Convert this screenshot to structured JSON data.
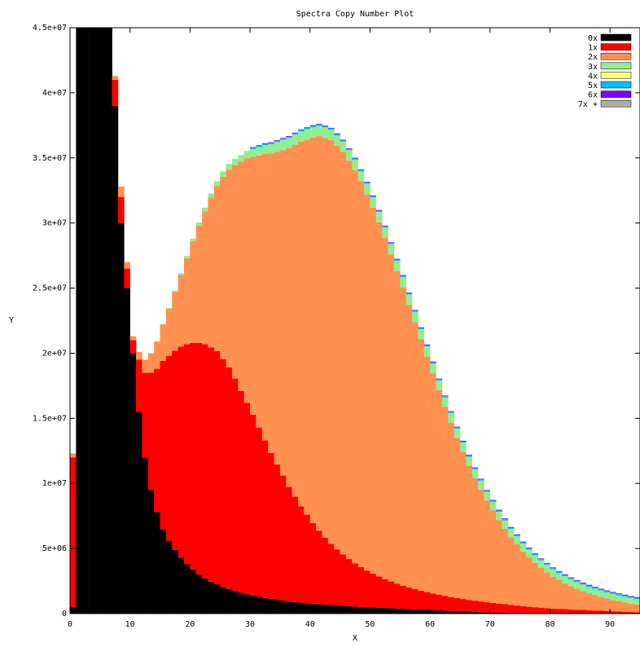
{
  "chart_data": {
    "type": "area",
    "title": "Spectra Copy Number Plot",
    "xlabel": "X",
    "ylabel": "Y",
    "xlim": [
      0,
      95
    ],
    "ylim": [
      0,
      45000000
    ],
    "x_ticks": [
      0,
      10,
      20,
      30,
      40,
      50,
      60,
      70,
      80,
      90
    ],
    "x_tick_labels": [
      "0",
      "10",
      "20",
      "30",
      "40",
      "50",
      "60",
      "70",
      "80",
      "90"
    ],
    "y_ticks": [
      0,
      5000000,
      10000000,
      15000000,
      20000000,
      25000000,
      30000000,
      35000000,
      40000000,
      45000000
    ],
    "y_tick_labels": [
      "0",
      "5e+06",
      "1e+07",
      "1.5e+07",
      "2e+07",
      "2.5e+07",
      "3e+07",
      "3.5e+07",
      "4e+07",
      "4.5e+07"
    ],
    "grid": false,
    "legend_position": "top-right",
    "x": [
      0,
      1,
      2,
      3,
      4,
      5,
      6,
      7,
      8,
      9,
      10,
      11,
      12,
      13,
      14,
      15,
      16,
      17,
      18,
      19,
      20,
      21,
      22,
      23,
      24,
      25,
      26,
      27,
      28,
      29,
      30,
      31,
      32,
      33,
      34,
      35,
      36,
      37,
      38,
      39,
      40,
      41,
      42,
      43,
      44,
      45,
      46,
      47,
      48,
      49,
      50,
      51,
      52,
      53,
      54,
      55,
      56,
      57,
      58,
      59,
      60,
      61,
      62,
      63,
      64,
      65,
      66,
      67,
      68,
      69,
      70,
      71,
      72,
      73,
      74,
      75,
      76,
      77,
      78,
      79,
      80,
      81,
      82,
      83,
      84,
      85,
      86,
      87,
      88,
      89,
      90,
      91,
      92,
      93,
      94
    ],
    "series": [
      {
        "name": "0x",
        "color": "#000000",
        "values": [
          500000,
          45000000,
          45000000,
          45000000,
          45000000,
          45000000,
          45000000,
          39000000,
          30000000,
          25000000,
          20000000,
          15500000,
          12000000,
          9500000,
          7800000,
          6500000,
          5600000,
          4900000,
          4300000,
          3800000,
          3400000,
          3000000,
          2700000,
          2450000,
          2250000,
          2050000,
          1900000,
          1750000,
          1600000,
          1480000,
          1380000,
          1290000,
          1200000,
          1130000,
          1060000,
          1000000,
          940000,
          890000,
          840000,
          800000,
          760000,
          720000,
          690000,
          660000,
          630000,
          600000,
          570000,
          540000,
          510000,
          490000,
          470000,
          450000,
          430000,
          410000,
          390000,
          370000,
          350000,
          330000,
          310000,
          290000,
          270000,
          250000,
          230000,
          210000,
          190000,
          170000,
          150000,
          130000,
          110000,
          90000,
          80000,
          70000,
          60000,
          50000,
          40000,
          30000,
          25000,
          20000,
          15000,
          10000,
          8000,
          6000,
          4000,
          3000,
          2000,
          1500,
          1000,
          800,
          600,
          400,
          300,
          200,
          150,
          100,
          80
        ]
      },
      {
        "name": "1x",
        "color": "#ff0000",
        "values": [
          11500000,
          0,
          0,
          0,
          0,
          0,
          0,
          2000000,
          2000000,
          1500000,
          1000000,
          4000000,
          6500000,
          9000000,
          11000000,
          12900000,
          14200000,
          15300000,
          16200000,
          16900000,
          17400000,
          17800000,
          18000000,
          18000000,
          17900000,
          17500000,
          17000000,
          16300000,
          15500000,
          14700000,
          13900000,
          13000000,
          12100000,
          11200000,
          10400000,
          9600000,
          8800000,
          8100000,
          7400000,
          6800000,
          6200000,
          5650000,
          5150000,
          4700000,
          4300000,
          3950000,
          3620000,
          3320000,
          3060000,
          2820000,
          2600000,
          2400000,
          2220000,
          2060000,
          1910000,
          1780000,
          1660000,
          1550000,
          1450000,
          1360000,
          1280000,
          1200000,
          1130000,
          1060000,
          1000000,
          950000,
          900000,
          860000,
          820000,
          780000,
          740000,
          700000,
          660000,
          620000,
          580000,
          540000,
          500000,
          470000,
          440000,
          410000,
          380000,
          360000,
          340000,
          320000,
          300000,
          280000,
          260000,
          240000,
          220000,
          200000,
          180000,
          160000,
          140000,
          120000,
          100000
        ]
      },
      {
        "name": "2x",
        "color": "#ff9050",
        "values": [
          300000,
          0,
          0,
          0,
          0,
          0,
          0,
          300000,
          800000,
          500000,
          300000,
          600000,
          1000000,
          1500000,
          2100000,
          2800000,
          3600000,
          4500000,
          5500000,
          6600000,
          7800000,
          9000000,
          10200000,
          11500000,
          12700000,
          14000000,
          15200000,
          16400000,
          17600000,
          18800000,
          19800000,
          20900000,
          22000000,
          23000000,
          24000000,
          25000000,
          26000000,
          27000000,
          28000000,
          28800000,
          29600000,
          30300000,
          30700000,
          31000000,
          31000000,
          30900000,
          30600000,
          30200000,
          29600000,
          28900000,
          28100000,
          27200000,
          26200000,
          25100000,
          24000000,
          22900000,
          21700000,
          20500000,
          19300000,
          18100000,
          16900000,
          15700000,
          14500000,
          13400000,
          12300000,
          11300000,
          10300000,
          9400000,
          8600000,
          7800000,
          7100000,
          6400000,
          5800000,
          5200000,
          4700000,
          4200000,
          3800000,
          3400000,
          3050000,
          2750000,
          2450000,
          2200000,
          1980000,
          1780000,
          1600000,
          1440000,
          1300000,
          1170000,
          1060000,
          960000,
          870000,
          790000,
          720000,
          650000,
          600000
        ]
      },
      {
        "name": "3x",
        "color": "#90ee90",
        "values": [
          0,
          0,
          0,
          0,
          0,
          0,
          0,
          0,
          0,
          0,
          0,
          0,
          0,
          0,
          0,
          50000,
          80000,
          110000,
          140000,
          170000,
          200000,
          240000,
          280000,
          320000,
          360000,
          400000,
          440000,
          480000,
          520000,
          560000,
          600000,
          640000,
          680000,
          720000,
          760000,
          780000,
          790000,
          800000,
          800000,
          800000,
          800000,
          800000,
          800000,
          800000,
          800000,
          800000,
          800000,
          800000,
          800000,
          800000,
          800000,
          800000,
          800000,
          800000,
          800000,
          800000,
          800000,
          790000,
          780000,
          770000,
          760000,
          750000,
          740000,
          730000,
          720000,
          710000,
          700000,
          690000,
          680000,
          670000,
          660000,
          650000,
          640000,
          630000,
          620000,
          610000,
          600000,
          590000,
          580000,
          570000,
          560000,
          550000,
          540000,
          530000,
          520000,
          510000,
          500000,
          490000,
          480000,
          470000,
          460000,
          450000,
          440000,
          430000,
          420000
        ]
      },
      {
        "name": "4x",
        "color": "#ffff80",
        "values": [
          0,
          0,
          0,
          0,
          0,
          0,
          0,
          0,
          0,
          0,
          0,
          0,
          0,
          0,
          0,
          0,
          0,
          0,
          0,
          0,
          0,
          0,
          0,
          0,
          0,
          0,
          0,
          0,
          0,
          0,
          0,
          0,
          0,
          0,
          0,
          0,
          0,
          0,
          0,
          0,
          0,
          0,
          0,
          0,
          0,
          0,
          0,
          0,
          0,
          0,
          0,
          0,
          0,
          0,
          0,
          0,
          0,
          0,
          0,
          0,
          0,
          0,
          0,
          0,
          0,
          0,
          0,
          0,
          0,
          0,
          0,
          0,
          0,
          0,
          0,
          0,
          0,
          0,
          0,
          0,
          0,
          0,
          0,
          0,
          0,
          0,
          0,
          0,
          0,
          0,
          0,
          0,
          0,
          0,
          0
        ]
      },
      {
        "name": "5x",
        "color": "#00bfff",
        "values": [
          0,
          0,
          0,
          0,
          0,
          0,
          0,
          0,
          0,
          0,
          0,
          0,
          0,
          0,
          0,
          0,
          0,
          0,
          0,
          0,
          0,
          0,
          0,
          0,
          0,
          0,
          0,
          0,
          0,
          0,
          100000,
          100000,
          100000,
          100000,
          100000,
          100000,
          100000,
          100000,
          100000,
          100000,
          100000,
          100000,
          100000,
          100000,
          100000,
          100000,
          100000,
          100000,
          100000,
          100000,
          100000,
          100000,
          100000,
          100000,
          100000,
          100000,
          100000,
          100000,
          100000,
          100000,
          100000,
          100000,
          100000,
          100000,
          100000,
          100000,
          100000,
          100000,
          100000,
          100000,
          100000,
          100000,
          100000,
          100000,
          100000,
          100000,
          100000,
          100000,
          100000,
          100000,
          100000,
          100000,
          100000,
          100000,
          100000,
          100000,
          100000,
          100000,
          100000,
          100000,
          100000,
          100000,
          100000,
          100000,
          100000
        ]
      },
      {
        "name": "6x",
        "color": "#8000ff",
        "values": [
          0,
          0,
          0,
          0,
          0,
          0,
          0,
          0,
          0,
          0,
          0,
          0,
          0,
          0,
          0,
          0,
          0,
          0,
          0,
          0,
          0,
          0,
          0,
          0,
          0,
          0,
          0,
          0,
          0,
          0,
          50000,
          50000,
          50000,
          50000,
          50000,
          50000,
          50000,
          50000,
          50000,
          50000,
          50000,
          50000,
          50000,
          50000,
          50000,
          50000,
          50000,
          50000,
          50000,
          50000,
          50000,
          50000,
          50000,
          50000,
          50000,
          50000,
          50000,
          50000,
          50000,
          50000,
          50000,
          50000,
          50000,
          50000,
          50000,
          50000,
          50000,
          50000,
          50000,
          50000,
          50000,
          50000,
          50000,
          50000,
          50000,
          50000,
          50000,
          50000,
          50000,
          50000,
          50000,
          50000,
          50000,
          50000,
          50000,
          50000,
          50000,
          50000,
          50000,
          50000,
          50000,
          50000,
          50000,
          50000,
          50000
        ]
      },
      {
        "name": "7x +",
        "color": "#b0b0a0",
        "values": [
          0,
          0,
          0,
          0,
          0,
          0,
          0,
          0,
          0,
          0,
          0,
          0,
          0,
          0,
          0,
          0,
          0,
          0,
          0,
          0,
          0,
          0,
          0,
          0,
          0,
          0,
          0,
          0,
          0,
          0,
          0,
          0,
          0,
          0,
          0,
          0,
          0,
          0,
          0,
          0,
          0,
          0,
          0,
          0,
          0,
          0,
          0,
          0,
          0,
          0,
          0,
          0,
          0,
          0,
          0,
          0,
          0,
          0,
          0,
          0,
          0,
          0,
          0,
          0,
          0,
          0,
          0,
          0,
          0,
          0,
          0,
          0,
          0,
          0,
          0,
          0,
          0,
          0,
          0,
          0,
          0,
          0,
          0,
          0,
          0,
          0,
          0,
          0,
          0,
          0,
          0,
          0,
          0,
          0,
          0
        ]
      }
    ]
  }
}
